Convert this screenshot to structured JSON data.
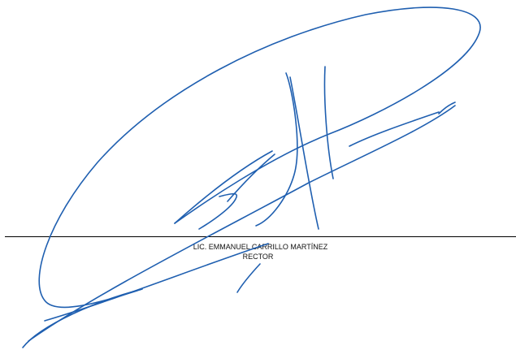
{
  "signer": {
    "name": "LIC. EMMANUEL CARRILLO MARTÍNEZ",
    "title": "RECTOR"
  },
  "signature": {
    "ink_color": "#1f5fb0",
    "type": "handwritten-signature"
  }
}
